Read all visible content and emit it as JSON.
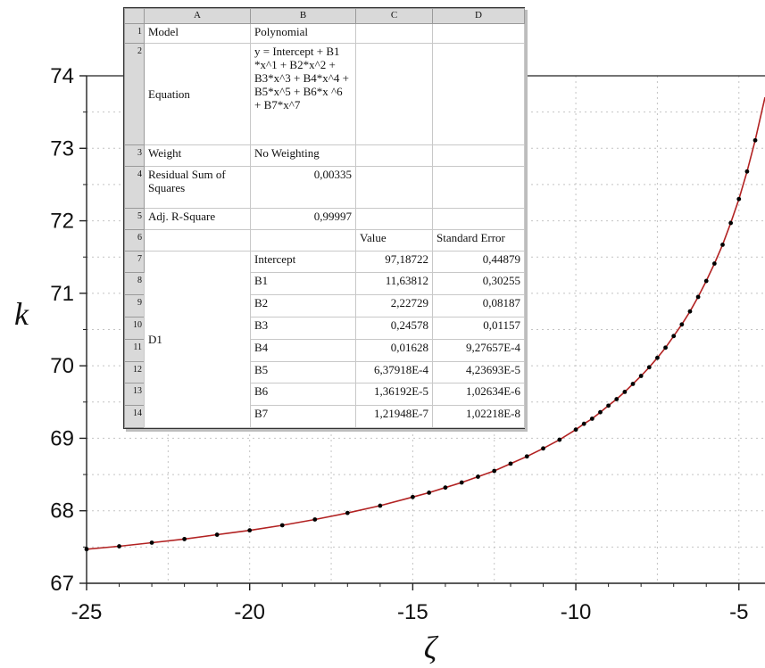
{
  "chart_data": {
    "type": "scatter",
    "xlabel": "ζ",
    "ylabel": "k",
    "xlim": [
      -25,
      -4.2
    ],
    "ylim": [
      67,
      74
    ],
    "xticks": [
      -25,
      -20,
      -15,
      -10,
      -5
    ],
    "yticks": [
      67,
      68,
      69,
      70,
      71,
      72,
      73,
      74
    ],
    "grid": true,
    "marker_color": "#000000",
    "fit_color": "#b22222",
    "points": {
      "x": [
        -25,
        -24,
        -23,
        -22,
        -21,
        -20,
        -19,
        -18,
        -17,
        -16,
        -15,
        -14.5,
        -14,
        -13.5,
        -13,
        -12.5,
        -12,
        -11.5,
        -11,
        -10.5,
        -10,
        -9.75,
        -9.5,
        -9.25,
        -9,
        -8.75,
        -8.5,
        -8.25,
        -8,
        -7.75,
        -7.5,
        -7.25,
        -7,
        -6.75,
        -6.5,
        -6.25,
        -6,
        -5.75,
        -5.5,
        -5.25,
        -5,
        -4.75,
        -4.5
      ],
      "y": [
        67.47,
        67.51,
        67.56,
        67.61,
        67.67,
        67.73,
        67.8,
        67.88,
        67.97,
        68.07,
        68.19,
        68.25,
        68.32,
        68.39,
        68.47,
        68.55,
        68.65,
        68.75,
        68.86,
        68.98,
        69.12,
        69.2,
        69.27,
        69.36,
        69.45,
        69.54,
        69.64,
        69.75,
        69.86,
        69.98,
        70.11,
        70.25,
        70.41,
        70.57,
        70.75,
        70.95,
        71.17,
        71.41,
        71.67,
        71.97,
        72.3,
        72.68,
        73.11
      ]
    }
  },
  "fit_table": {
    "columns": [
      "A",
      "B",
      "C",
      "D"
    ],
    "rows": [
      {
        "n": "1",
        "a": "Model",
        "b": "Polynomial"
      },
      {
        "n": "2",
        "a": "Equation",
        "b": "y = Intercept + B1 *x^1 + B2*x^2 + B3*x^3 + B4*x^4 + B5*x^5 + B6*x ^6 + B7*x^7"
      },
      {
        "n": "3",
        "a": "Weight",
        "b": "No Weighting"
      },
      {
        "n": "4",
        "a": "Residual Sum of Squares",
        "b": "0,00335"
      },
      {
        "n": "5",
        "a": "Adj. R-Square",
        "b": "0,99997"
      },
      {
        "n": "6",
        "c": "Value",
        "d": "Standard Error"
      }
    ],
    "param_group": "D1",
    "params": [
      {
        "n": "7",
        "name": "Intercept",
        "value": "97,18722",
        "error": "0,44879"
      },
      {
        "n": "8",
        "name": "B1",
        "value": "11,63812",
        "error": "0,30255"
      },
      {
        "n": "9",
        "name": "B2",
        "value": "2,22729",
        "error": "0,08187"
      },
      {
        "n": "10",
        "name": "B3",
        "value": "0,24578",
        "error": "0,01157"
      },
      {
        "n": "11",
        "name": "B4",
        "value": "0,01628",
        "error": "9,27657E-4"
      },
      {
        "n": "12",
        "name": "B5",
        "value": "6,37918E-4",
        "error": "4,23693E-5"
      },
      {
        "n": "13",
        "name": "B6",
        "value": "1,36192E-5",
        "error": "1,02634E-6"
      },
      {
        "n": "14",
        "name": "B7",
        "value": "1,21948E-7",
        "error": "1,02218E-8"
      }
    ]
  }
}
